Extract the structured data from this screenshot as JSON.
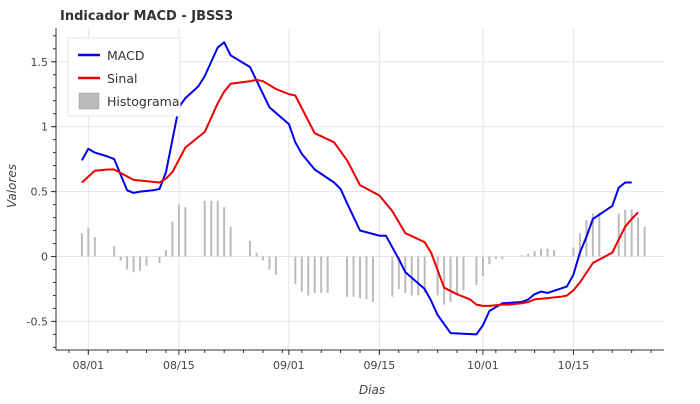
{
  "chart_data": {
    "type": "line",
    "title": "Indicador MACD - JBSS3",
    "xlabel": "Dias",
    "ylabel": "Valores",
    "x_ticks": [
      {
        "day": 0,
        "label": "08/01"
      },
      {
        "day": 14,
        "label": "08/15"
      },
      {
        "day": 31,
        "label": "09/01"
      },
      {
        "day": 45,
        "label": "09/15"
      },
      {
        "day": 61,
        "label": "10/01"
      },
      {
        "day": 75,
        "label": "10/15"
      }
    ],
    "xlim": [
      -5,
      89
    ],
    "ylim": [
      -0.72,
      1.76
    ],
    "y_ticks": [
      -0.5,
      0,
      0.5,
      1,
      1.5
    ],
    "grid": true,
    "legend_position": "top-left",
    "legend": [
      {
        "name": "MACD",
        "kind": "line",
        "color": "#0000ee"
      },
      {
        "name": "Sinal",
        "kind": "line",
        "color": "#ee0000"
      },
      {
        "name": "Histograma",
        "kind": "box",
        "color": "#bbbbbb"
      }
    ],
    "series": [
      {
        "name": "MACD",
        "color": "#0000ee",
        "points": [
          [
            -1,
            0.74
          ],
          [
            0,
            0.83
          ],
          [
            1,
            0.8
          ],
          [
            3,
            0.77
          ],
          [
            4,
            0.75
          ],
          [
            6,
            0.51
          ],
          [
            7,
            0.49
          ],
          [
            8,
            0.5
          ],
          [
            10,
            0.51
          ],
          [
            11,
            0.52
          ],
          [
            12,
            0.65
          ],
          [
            14,
            1.15
          ],
          [
            15,
            1.22
          ],
          [
            17,
            1.31
          ],
          [
            18,
            1.39
          ],
          [
            20,
            1.61
          ],
          [
            21,
            1.65
          ],
          [
            22,
            1.55
          ],
          [
            25,
            1.46
          ],
          [
            28,
            1.15
          ],
          [
            31,
            1.02
          ],
          [
            32,
            0.88
          ],
          [
            33,
            0.79
          ],
          [
            35,
            0.67
          ],
          [
            38,
            0.57
          ],
          [
            39,
            0.52
          ],
          [
            40,
            0.41
          ],
          [
            42,
            0.2
          ],
          [
            45,
            0.16
          ],
          [
            46,
            0.16
          ],
          [
            48,
            -0.02
          ],
          [
            49,
            -0.12
          ],
          [
            52,
            -0.25
          ],
          [
            53,
            -0.34
          ],
          [
            54,
            -0.45
          ],
          [
            56,
            -0.59
          ],
          [
            60,
            -0.6
          ],
          [
            61,
            -0.53
          ],
          [
            62,
            -0.42
          ],
          [
            63,
            -0.39
          ],
          [
            64,
            -0.36
          ],
          [
            67,
            -0.35
          ],
          [
            68,
            -0.33
          ],
          [
            69,
            -0.29
          ],
          [
            70,
            -0.27
          ],
          [
            71,
            -0.28
          ],
          [
            74,
            -0.23
          ],
          [
            75,
            -0.14
          ],
          [
            76,
            0.03
          ],
          [
            77,
            0.15
          ],
          [
            78,
            0.29
          ],
          [
            81,
            0.39
          ],
          [
            82,
            0.53
          ],
          [
            83,
            0.57
          ],
          [
            84,
            0.57
          ]
        ]
      },
      {
        "name": "Sinal",
        "color": "#ee0000",
        "points": [
          [
            -1,
            0.57
          ],
          [
            1,
            0.66
          ],
          [
            3,
            0.67
          ],
          [
            4,
            0.67
          ],
          [
            7,
            0.59
          ],
          [
            11,
            0.57
          ],
          [
            12,
            0.6
          ],
          [
            13,
            0.65
          ],
          [
            15,
            0.84
          ],
          [
            18,
            0.96
          ],
          [
            20,
            1.18
          ],
          [
            21,
            1.27
          ],
          [
            22,
            1.33
          ],
          [
            25,
            1.35
          ],
          [
            26,
            1.36
          ],
          [
            27,
            1.35
          ],
          [
            29,
            1.29
          ],
          [
            31,
            1.25
          ],
          [
            32,
            1.24
          ],
          [
            35,
            0.95
          ],
          [
            38,
            0.88
          ],
          [
            40,
            0.74
          ],
          [
            42,
            0.55
          ],
          [
            45,
            0.47
          ],
          [
            47,
            0.35
          ],
          [
            49,
            0.18
          ],
          [
            52,
            0.11
          ],
          [
            53,
            0.03
          ],
          [
            55,
            -0.24
          ],
          [
            57,
            -0.29
          ],
          [
            59,
            -0.33
          ],
          [
            60,
            -0.37
          ],
          [
            61,
            -0.38
          ],
          [
            62,
            -0.38
          ],
          [
            64,
            -0.37
          ],
          [
            65,
            -0.37
          ],
          [
            67,
            -0.36
          ],
          [
            68,
            -0.35
          ],
          [
            69,
            -0.33
          ],
          [
            71,
            -0.32
          ],
          [
            73,
            -0.31
          ],
          [
            74,
            -0.3
          ],
          [
            75,
            -0.26
          ],
          [
            76,
            -0.2
          ],
          [
            78,
            -0.05
          ],
          [
            81,
            0.03
          ],
          [
            82,
            0.13
          ],
          [
            83,
            0.23
          ],
          [
            84,
            0.29
          ],
          [
            85,
            0.34
          ]
        ]
      },
      {
        "name": "Histograma",
        "kind": "bar",
        "color": "#bbbbbb",
        "points": [
          [
            -1,
            0.18
          ],
          [
            0,
            0.22
          ],
          [
            1,
            0.15
          ],
          [
            4,
            0.08
          ],
          [
            5,
            -0.03
          ],
          [
            6,
            -0.1
          ],
          [
            7,
            -0.12
          ],
          [
            8,
            -0.11
          ],
          [
            9,
            -0.07
          ],
          [
            11,
            -0.05
          ],
          [
            12,
            0.05
          ],
          [
            13,
            0.27
          ],
          [
            14,
            0.4
          ],
          [
            15,
            0.38
          ],
          [
            18,
            0.43
          ],
          [
            19,
            0.43
          ],
          [
            20,
            0.43
          ],
          [
            21,
            0.38
          ],
          [
            22,
            0.23
          ],
          [
            25,
            0.12
          ],
          [
            26,
            0.03
          ],
          [
            27,
            -0.03
          ],
          [
            28,
            -0.1
          ],
          [
            29,
            -0.14
          ],
          [
            32,
            -0.21
          ],
          [
            33,
            -0.27
          ],
          [
            34,
            -0.3
          ],
          [
            35,
            -0.28
          ],
          [
            36,
            -0.28
          ],
          [
            37,
            -0.28
          ],
          [
            40,
            -0.31
          ],
          [
            41,
            -0.31
          ],
          [
            42,
            -0.32
          ],
          [
            43,
            -0.33
          ],
          [
            44,
            -0.35
          ],
          [
            47,
            -0.31
          ],
          [
            48,
            -0.25
          ],
          [
            49,
            -0.28
          ],
          [
            50,
            -0.3
          ],
          [
            51,
            -0.3
          ],
          [
            52,
            -0.28
          ],
          [
            54,
            -0.3
          ],
          [
            55,
            -0.37
          ],
          [
            56,
            -0.35
          ],
          [
            57,
            -0.3
          ],
          [
            58,
            -0.26
          ],
          [
            60,
            -0.22
          ],
          [
            61,
            -0.15
          ],
          [
            62,
            -0.06
          ],
          [
            63,
            -0.02
          ],
          [
            64,
            -0.02
          ],
          [
            67,
            0.01
          ],
          [
            68,
            0.02
          ],
          [
            69,
            0.04
          ],
          [
            70,
            0.06
          ],
          [
            71,
            0.06
          ],
          [
            72,
            0.05
          ],
          [
            75,
            0.07
          ],
          [
            76,
            0.18
          ],
          [
            77,
            0.28
          ],
          [
            78,
            0.33
          ],
          [
            79,
            0.34
          ],
          [
            82,
            0.33
          ],
          [
            83,
            0.36
          ],
          [
            84,
            0.36
          ],
          [
            85,
            0.3
          ],
          [
            86,
            0.23
          ]
        ]
      }
    ]
  }
}
